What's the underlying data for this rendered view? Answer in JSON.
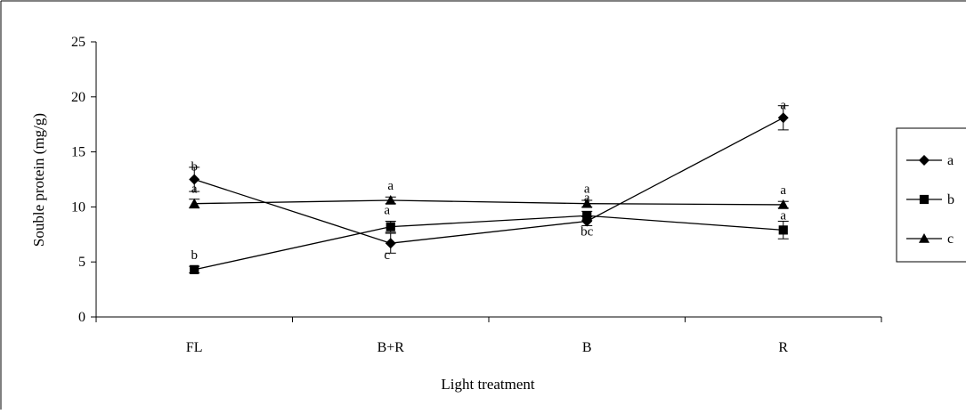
{
  "chart_data": {
    "type": "line",
    "title": "",
    "xlabel": "Light treatment",
    "ylabel": "Souble protein (mg/g)",
    "categories": [
      "FL",
      "B+R",
      "B",
      "R"
    ],
    "ylim": [
      0,
      25
    ],
    "yticks": [
      "0",
      "5",
      "10",
      "15",
      "20",
      "25"
    ],
    "grid": false,
    "legend_position": "right",
    "series": [
      {
        "name": "a",
        "marker": "diamond",
        "values": [
          12.5,
          6.7,
          8.7,
          18.1
        ],
        "errors": [
          1.1,
          0.9,
          0.4,
          1.1
        ],
        "letters": [
          "b",
          "c",
          "bc",
          "a"
        ]
      },
      {
        "name": "b",
        "marker": "square",
        "values": [
          4.3,
          8.2,
          9.2,
          7.9
        ],
        "errors": [
          0.3,
          0.5,
          0.4,
          0.8
        ],
        "letters": [
          "b",
          "a",
          "a",
          "a"
        ]
      },
      {
        "name": "c",
        "marker": "triangle",
        "values": [
          10.3,
          10.6,
          10.3,
          10.2
        ],
        "errors": [
          0.4,
          0.3,
          0.3,
          0.3
        ],
        "letters": [
          "a",
          "a",
          "a",
          "a"
        ]
      }
    ]
  }
}
